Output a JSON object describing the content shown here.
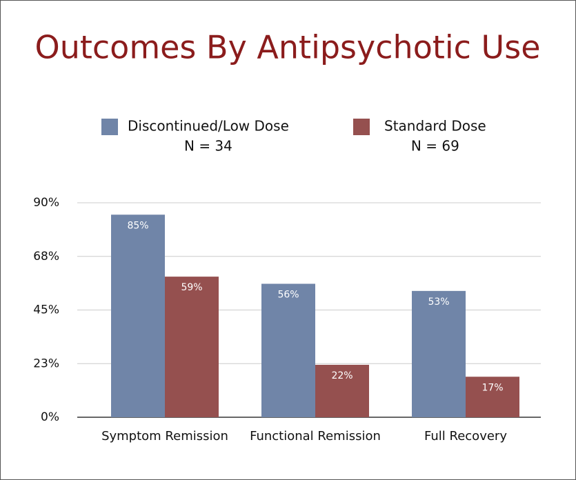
{
  "chart_data": {
    "type": "bar",
    "title": "Outcomes By Antipsychotic Use",
    "categories": [
      "Symptom Remission",
      "Functional Remission",
      "Full Recovery"
    ],
    "series": [
      {
        "name": "Discontinued/Low Dose",
        "sample": "N = 34",
        "color": "#7085a8",
        "values": [
          85,
          56,
          53
        ],
        "value_labels": [
          "85%",
          "56%",
          "53%"
        ]
      },
      {
        "name": "Standard Dose",
        "sample": "N = 69",
        "color": "#95504f",
        "values": [
          59,
          22,
          17
        ],
        "value_labels": [
          "59%",
          "22%",
          "17%"
        ]
      }
    ],
    "ylim": [
      0,
      90
    ],
    "yticks": [
      {
        "value": 0,
        "label": "0%"
      },
      {
        "value": 22.5,
        "label": "23%"
      },
      {
        "value": 45,
        "label": "45%"
      },
      {
        "value": 67.5,
        "label": "68%"
      },
      {
        "value": 90,
        "label": "90%"
      }
    ],
    "grid": true,
    "legend": "top"
  }
}
